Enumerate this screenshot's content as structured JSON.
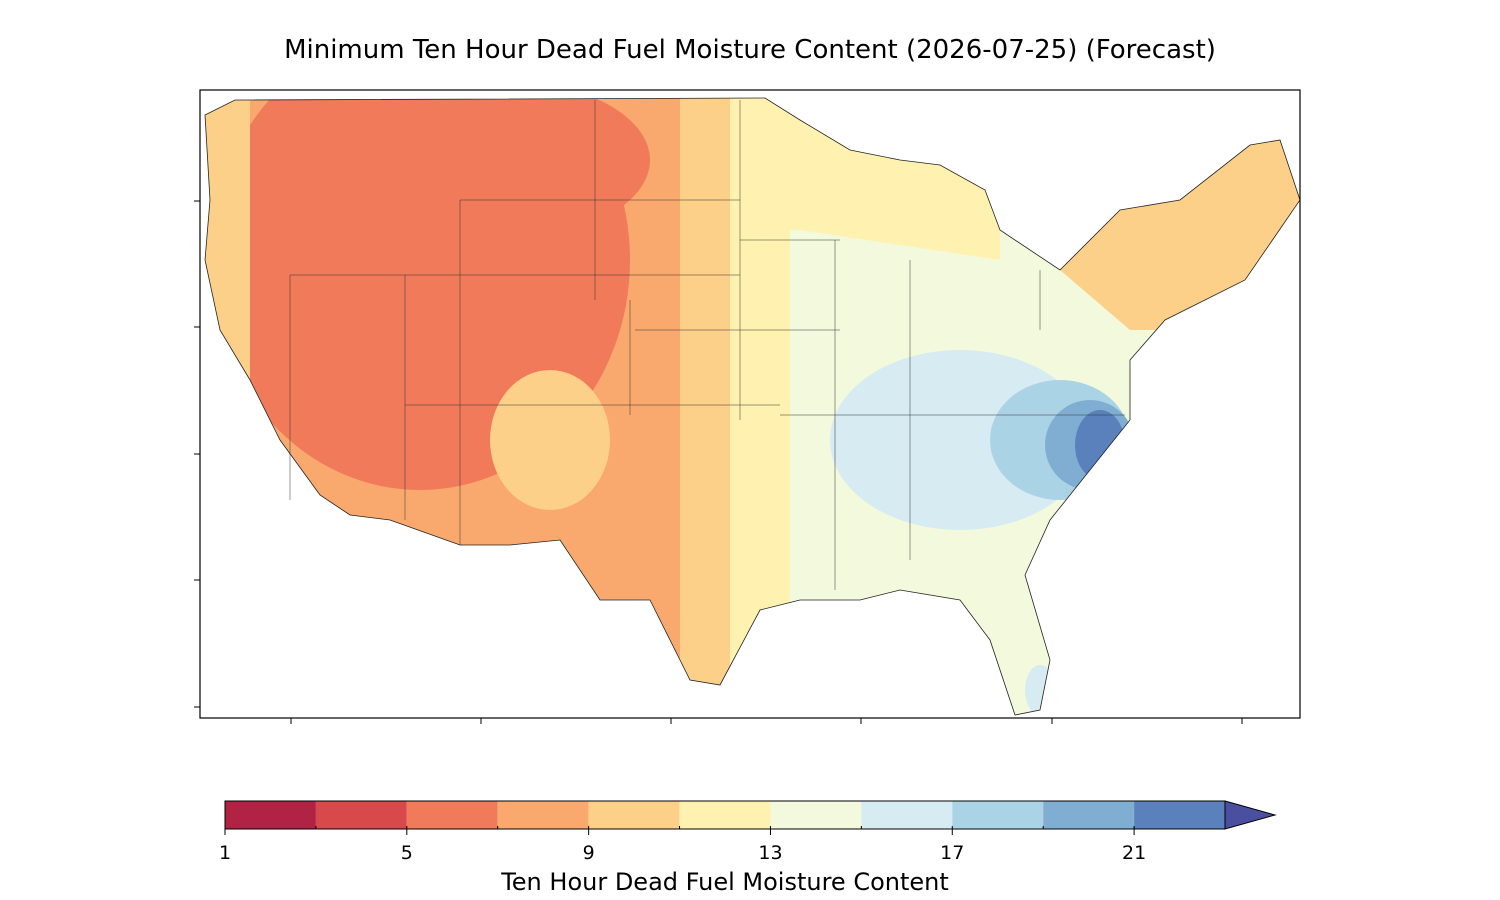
{
  "map": {
    "title": "Minimum Ten Hour Dead Fuel Moisture Content (2026-07-25) (Forecast)"
  },
  "colorbar": {
    "label": "Ten Hour Dead Fuel Moisture Content",
    "bounds": [
      1,
      3,
      5,
      7,
      9,
      11,
      13,
      15,
      17,
      19,
      21,
      23
    ],
    "colors": [
      "#b22245",
      "#d8494b",
      "#f07a5a",
      "#f9a96d",
      "#fdd08a",
      "#fff2b0",
      "#f2f9dc",
      "#d6ecf2",
      "#abd3e6",
      "#80aed2",
      "#5b81bc"
    ],
    "extend_color": "#4a4fa0",
    "ticks": [
      1,
      5,
      9,
      13,
      17,
      21
    ]
  }
}
